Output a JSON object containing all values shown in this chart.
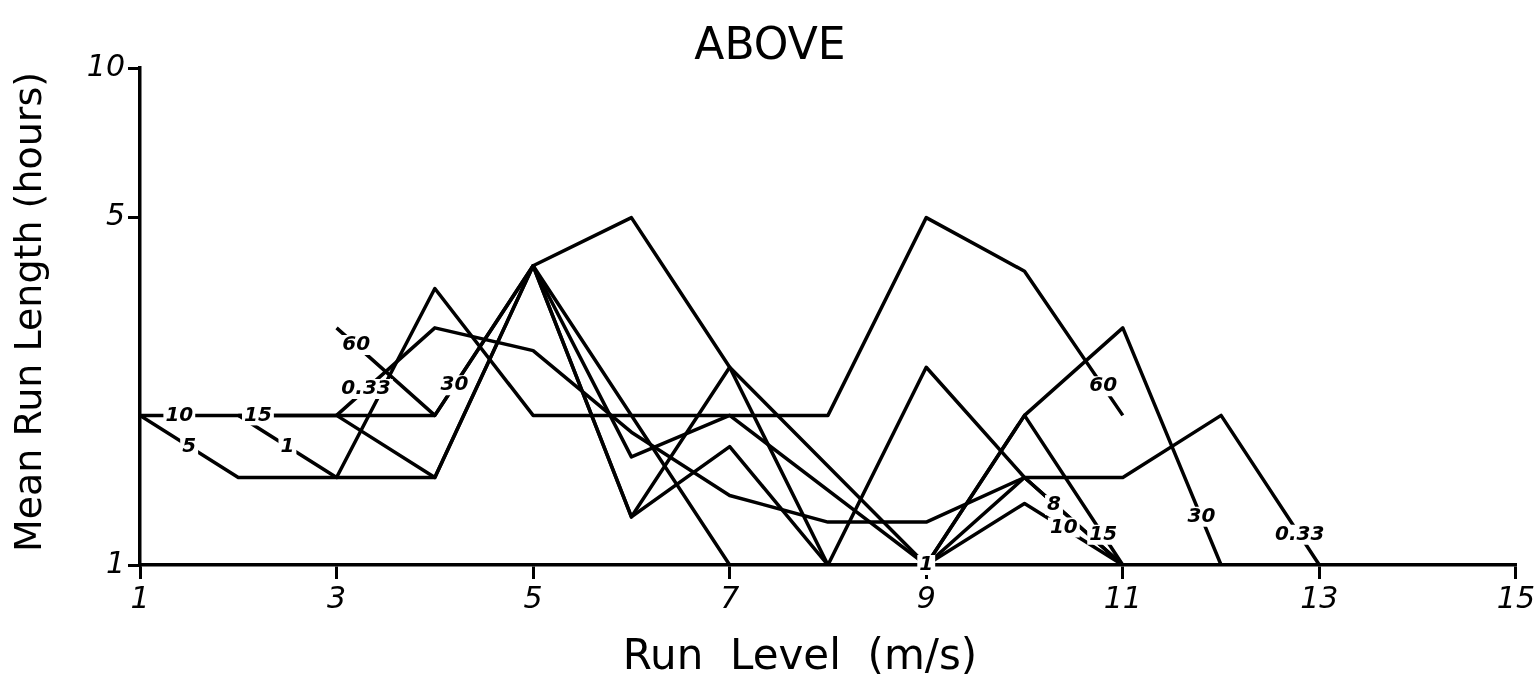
{
  "chart_data": {
    "type": "line",
    "title": "ABOVE",
    "xlabel": "Run  Level  (m/s)",
    "ylabel": "Mean Run Length (hours)",
    "xlim": [
      1,
      15
    ],
    "xticks": [
      1,
      3,
      5,
      7,
      9,
      11,
      13,
      15
    ],
    "ylim": [
      1,
      10
    ],
    "yticks": [
      1,
      5,
      10
    ],
    "log": "y",
    "grid": false,
    "legend": false,
    "marker": "none",
    "line_style": "solid",
    "series": [
      {
        "color": "#000000",
        "x": [
          1,
          2,
          3,
          4,
          5,
          6,
          7,
          8,
          9,
          10,
          11
        ],
        "values": [
          2,
          2,
          2,
          2,
          4,
          5,
          2.5,
          1,
          2.5,
          1.5,
          1
        ]
      },
      {
        "color": "#000000",
        "x": [
          1,
          2,
          3,
          4,
          5,
          6,
          7,
          9,
          10,
          11
        ],
        "values": [
          2,
          1.5,
          1.5,
          1.5,
          4,
          1.25,
          2.5,
          1,
          1.33,
          1
        ]
      },
      {
        "color": "#000000",
        "x": [
          2,
          3,
          4,
          5,
          6,
          7,
          9,
          10,
          11
        ],
        "values": [
          2,
          2,
          1.5,
          4,
          1.65,
          2,
          1,
          2,
          1
        ]
      },
      {
        "color": "#000000",
        "x": [
          2,
          3,
          4,
          5,
          6,
          7,
          8,
          9,
          10,
          11
        ],
        "values": [
          2,
          1.5,
          3.6,
          2,
          2,
          2,
          2,
          5,
          3.9,
          2
        ]
      },
      {
        "color": "#000000",
        "x": [
          3,
          4,
          5,
          6,
          7,
          8,
          9,
          10,
          11,
          12,
          13
        ],
        "values": [
          2,
          3,
          2.7,
          1.85,
          1.38,
          1.22,
          1.22,
          1.5,
          1.5,
          2,
          1
        ]
      },
      {
        "color": "#000000",
        "x": [
          3,
          4,
          5,
          7
        ],
        "values": [
          3,
          2,
          4,
          1
        ]
      },
      {
        "color": "#000000",
        "x": [
          5,
          6,
          7,
          8
        ],
        "values": [
          4,
          1.25,
          1.73,
          1
        ]
      },
      {
        "color": "#000000",
        "x": [
          9,
          10,
          11
        ],
        "values": [
          1,
          1.5,
          1
        ]
      },
      {
        "color": "#000000",
        "x": [
          9,
          10,
          11,
          12
        ],
        "values": [
          1,
          2,
          3,
          1
        ]
      }
    ],
    "annotations": [
      {
        "text": "10",
        "x": 1.4,
        "y": 2
      },
      {
        "text": "15",
        "x": 2.2,
        "y": 2
      },
      {
        "text": "0.33",
        "x": 3.3,
        "y": 2.26
      },
      {
        "text": "60",
        "x": 3.2,
        "y": 2.77
      },
      {
        "text": "30",
        "x": 4.2,
        "y": 2.3
      },
      {
        "text": "5",
        "x": 1.5,
        "y": 1.73
      },
      {
        "text": "1",
        "x": 2.5,
        "y": 1.73
      },
      {
        "text": "60",
        "x": 10.8,
        "y": 2.29
      },
      {
        "text": "8",
        "x": 10.3,
        "y": 1.32
      },
      {
        "text": "15",
        "x": 10.8,
        "y": 1.15
      },
      {
        "text": "10",
        "x": 10.4,
        "y": 1.19
      },
      {
        "text": "30",
        "x": 11.8,
        "y": 1.25
      },
      {
        "text": "0.33",
        "x": 12.8,
        "y": 1.15
      },
      {
        "text": "1",
        "x": 9,
        "y": 1
      }
    ]
  }
}
